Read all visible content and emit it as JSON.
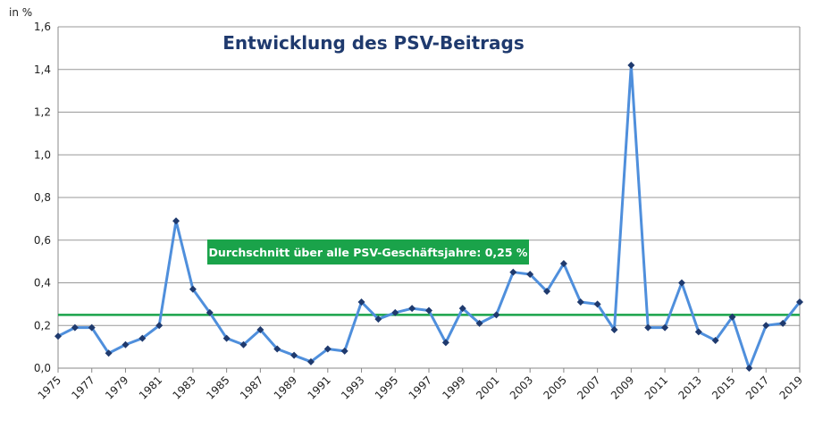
{
  "chart_data": {
    "type": "line",
    "title": "Entwicklung des PSV-Beitrags",
    "y_label": "in %",
    "x": [
      1975,
      1976,
      1977,
      1978,
      1979,
      1980,
      1981,
      1982,
      1983,
      1984,
      1985,
      1986,
      1987,
      1988,
      1989,
      1990,
      1991,
      1992,
      1993,
      1994,
      1995,
      1996,
      1997,
      1998,
      1999,
      2000,
      2001,
      2002,
      2003,
      2004,
      2005,
      2006,
      2007,
      2008,
      2009,
      2010,
      2011,
      2012,
      2013,
      2014,
      2015,
      2016,
      2017,
      2018,
      2019
    ],
    "series": [
      {
        "name": "PSV-Beitrag",
        "color": "#4f8fdc",
        "marker_color": "#1f3a6e",
        "values": [
          0.15,
          0.19,
          0.19,
          0.07,
          0.11,
          0.14,
          0.2,
          0.69,
          0.37,
          0.26,
          0.14,
          0.11,
          0.18,
          0.09,
          0.06,
          0.03,
          0.09,
          0.08,
          0.31,
          0.23,
          0.26,
          0.28,
          0.27,
          0.12,
          0.28,
          0.21,
          0.25,
          0.45,
          0.44,
          0.36,
          0.49,
          0.31,
          0.3,
          0.18,
          1.42,
          0.19,
          0.19,
          0.4,
          0.17,
          0.13,
          0.24,
          0.0,
          0.2,
          0.21,
          0.31
        ]
      }
    ],
    "xlim": [
      1975,
      2019
    ],
    "xticks": [
      1975,
      1977,
      1979,
      1981,
      1983,
      1985,
      1987,
      1989,
      1991,
      1993,
      1995,
      1997,
      1999,
      2001,
      2003,
      2005,
      2007,
      2009,
      2011,
      2013,
      2015,
      2017,
      2019
    ],
    "ylim": [
      0,
      1.6
    ],
    "yticks": [
      {
        "value": 0,
        "label": "0,0"
      },
      {
        "value": 0.2,
        "label": "0,2"
      },
      {
        "value": 0.4,
        "label": "0,4"
      },
      {
        "value": 0.6,
        "label": "0,6"
      },
      {
        "value": 0.8,
        "label": "0,8"
      },
      {
        "value": 1.0,
        "label": "1,0"
      },
      {
        "value": 1.2,
        "label": "1,2"
      },
      {
        "value": 1.4,
        "label": "1,4"
      },
      {
        "value": 1.6,
        "label": "1,6"
      }
    ],
    "grid": true,
    "reference_line": {
      "value": 0.25,
      "color": "#1aa34a",
      "label": "Durchschnitt über alle PSV-Geschäftsjahre: 0,25 %"
    }
  }
}
